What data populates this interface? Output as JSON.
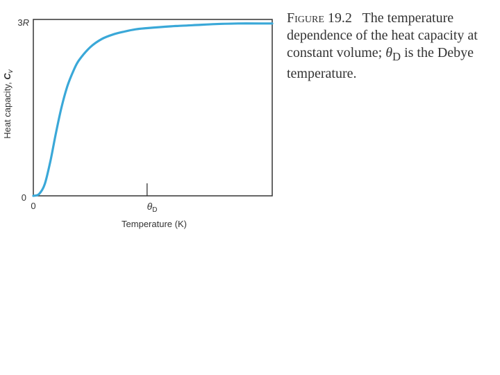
{
  "chart_data": {
    "type": "line",
    "title": "",
    "xlabel": "Temperature (K)",
    "ylabel_text": "Heat capacity, ",
    "ylabel_symbol": "C",
    "ylabel_subscript": "v",
    "x_ticks": [
      {
        "x": 0,
        "label": "0"
      },
      {
        "x": 1,
        "label_symbol": "θ",
        "label_subscript": "D"
      }
    ],
    "y_ticks": [
      {
        "y": 0,
        "label": "0"
      },
      {
        "y": 3,
        "label_prefix": "3",
        "label_symbol": "R"
      }
    ],
    "y_unit": "R",
    "x_unit": "θD",
    "xlim": [
      0,
      2.1
    ],
    "ylim": [
      0,
      3.05
    ],
    "grid": false,
    "series": [
      {
        "x": [
          0,
          0.05,
          0.1,
          0.15,
          0.2,
          0.25,
          0.3,
          0.35,
          0.4,
          0.5,
          0.6,
          0.7,
          0.8,
          0.9,
          1.0,
          1.2,
          1.4,
          1.6,
          1.8,
          2.0,
          2.1
        ],
        "y": [
          0,
          0.03,
          0.2,
          0.6,
          1.1,
          1.55,
          1.9,
          2.15,
          2.34,
          2.57,
          2.71,
          2.79,
          2.84,
          2.88,
          2.9,
          2.93,
          2.95,
          2.97,
          2.98,
          2.98,
          2.98
        ],
        "color": "#3aa8d8"
      }
    ]
  },
  "caption": {
    "label": "Figure",
    "number": "19.2",
    "text_1": "The temperature dependence of the heat capacity at constant volume; ",
    "symbol": "θ",
    "subscript": "D",
    "text_2": " is the Debye temperature."
  }
}
